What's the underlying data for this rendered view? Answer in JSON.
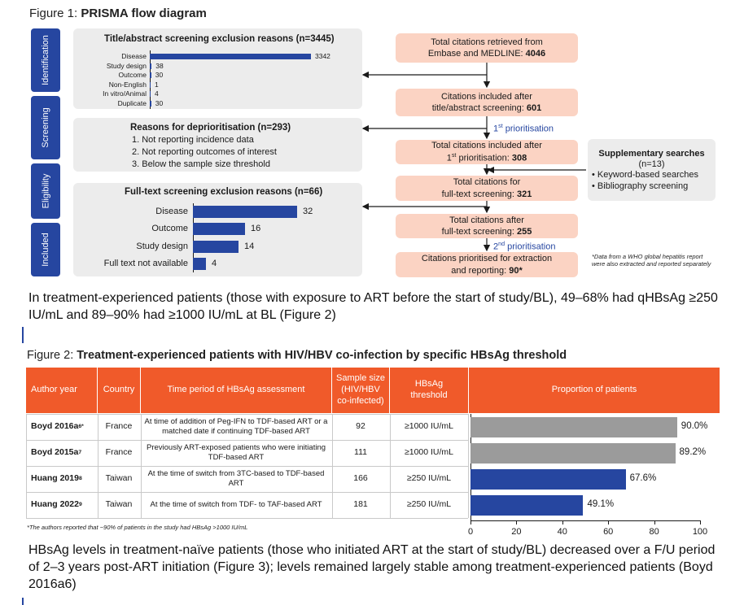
{
  "figure1": {
    "title_prefix": "Figure 1: ",
    "title_bold": "PRISMA flow diagram",
    "stages": [
      "Identification",
      "Screening",
      "Eligibility",
      "Included"
    ],
    "tiab_panel": {
      "title": "Title/abstract screening exclusion reasons (n=3445)",
      "items": [
        {
          "label": "Disease",
          "value": 3342
        },
        {
          "label": "Study design",
          "value": 38
        },
        {
          "label": "Outcome",
          "value": 30
        },
        {
          "label": "Non-English",
          "value": 1
        },
        {
          "label": "In vitro/Animal",
          "value": 4
        },
        {
          "label": "Duplicate",
          "value": 30
        }
      ]
    },
    "depriority_panel": {
      "title": "Reasons for deprioritisation (n=293)",
      "reasons": [
        "1. Not reporting incidence data",
        "2. Not reporting outcomes of interest",
        "3. Below the sample size threshold"
      ]
    },
    "fulltext_panel": {
      "title": "Full-text screening exclusion reasons (n=66)",
      "items": [
        {
          "label": "Disease",
          "value": 32
        },
        {
          "label": "Outcome",
          "value": 16
        },
        {
          "label": "Study design",
          "value": 14
        },
        {
          "label": "Full text not available",
          "value": 4
        }
      ]
    },
    "flow": {
      "box1_line1": "Total citations retrieved from",
      "box1_line2": "Embase and MEDLINE: ",
      "box1_num": "4046",
      "box2_line1": "Citations included after",
      "box2_line2": "title/abstract screening: ",
      "box2_num": "601",
      "prior1_num": "1",
      "prior1_sup": "st",
      "prior1_text": " prioritisation",
      "box3_line1": "Total citations included after",
      "box3_pre": "1",
      "box3_sup": "st",
      "box3_line2": " prioritisation: ",
      "box3_num": "308",
      "box4_line1": "Total citations for",
      "box4_line2": "full-text screening: ",
      "box4_num": "321",
      "box5_line1": "Total citations after",
      "box5_line2": "full-text screening: ",
      "box5_num": "255",
      "prior2_num": "2",
      "prior2_sup": "nd",
      "prior2_text": " prioritisation",
      "box6_line1": "Citations prioritised for extraction",
      "box6_line2": "and reporting: ",
      "box6_num": "90*"
    },
    "supplementary": {
      "title": "Supplementary searches",
      "n": "(n=13)",
      "items": [
        "Keyword-based searches",
        "Bibliography screening"
      ]
    },
    "note": "*Data from a WHO global hepatitis report were also extracted and reported separately"
  },
  "paragraph1": "In treatment-experienced patients (those with exposure to ART before the start of study/BL), 49–68% had qHBsAg ≥250 IU/mL and 89–90% had ≥1000 IU/mL at BL (Figure 2)",
  "figure2": {
    "title_prefix": "Figure 2: ",
    "title_bold": "Treatment-experienced patients with HIV/HBV co-infection by specific HBsAg threshold",
    "headers": {
      "author": "Author year",
      "country": "Country",
      "period": "Time period of HBsAg assessment",
      "sample": "Sample size (HIV/HBV co-infected)",
      "threshold": "HBsAg threshold",
      "proportion": "Proportion of patients"
    },
    "rows": [
      {
        "author": "Boyd 2016a",
        "ref": "6*",
        "country": "France",
        "period": "At time of addition of Peg-IFN to TDF-based ART or a matched date if continuing TDF-based ART",
        "sample": "92",
        "threshold": "≥1000 IU/mL"
      },
      {
        "author": "Boyd 2015a",
        "ref": "7",
        "country": "France",
        "period": "Previously ART-exposed patients who were initiating TDF-based ART",
        "sample": "111",
        "threshold": "≥1000 IU/mL"
      },
      {
        "author": "Huang 2019",
        "ref": "8",
        "country": "Taiwan",
        "period": "At the time of switch from 3TC-based to TDF-based ART",
        "sample": "166",
        "threshold": "≥250 IU/mL"
      },
      {
        "author": "Huang 2022",
        "ref": "9",
        "country": "Taiwan",
        "period": "At the time of switch from TDF- to TAF-based ART",
        "sample": "181",
        "threshold": "≥250 IU/mL"
      }
    ],
    "footnote": "*The authors reported that ~90% of patients in the study had HBsAg >1000 IU/mL"
  },
  "chart_data": {
    "type": "bar",
    "orientation": "horizontal",
    "categories": [
      "Boyd 2016a",
      "Boyd 2015a",
      "Huang 2019",
      "Huang 2022"
    ],
    "values": [
      90.0,
      89.2,
      67.6,
      49.1
    ],
    "value_labels": [
      "90.0%",
      "89.2%",
      "67.6%",
      "49.1%"
    ],
    "bar_colors": [
      "#9b9b9b",
      "#9b9b9b",
      "#2646a0",
      "#2646a0"
    ],
    "title": "Proportion of patients",
    "xlim": [
      0,
      100
    ],
    "xticks": [
      0,
      20,
      40,
      60,
      80,
      100
    ]
  },
  "paragraph2": "HBsAg levels in treatment-naïve patients (those who initiated ART at the start of study/BL) decreased over a F/U period of 2–3 years post-ART initiation (Figure 3); levels remained largely stable among treatment-experienced patients (Boyd 2016a6)",
  "colors": {
    "primary": "#2646a0",
    "accent": "#f05a2a",
    "flow_box": "#fbd3c3",
    "panel": "#ececec",
    "grey_bar": "#9b9b9b"
  }
}
